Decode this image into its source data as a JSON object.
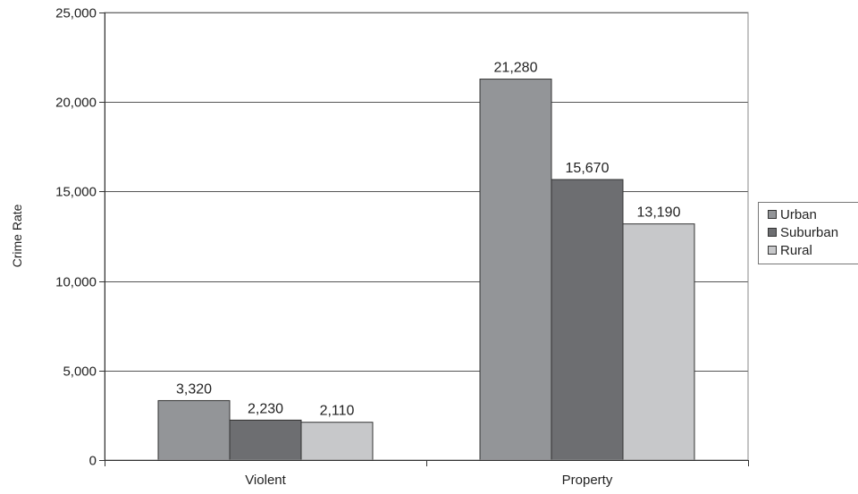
{
  "chart_data": {
    "type": "bar",
    "categories": [
      "Violent",
      "Property"
    ],
    "series": [
      {
        "name": "Urban",
        "values": [
          3320,
          21280
        ],
        "color": "#939598",
        "labels": [
          "3,320",
          "21,280"
        ]
      },
      {
        "name": "Suburban",
        "values": [
          2230,
          15670
        ],
        "color": "#6d6e71",
        "labels": [
          "2,230",
          "15,670"
        ]
      },
      {
        "name": "Rural",
        "values": [
          2110,
          13190
        ],
        "color": "#c7c8ca",
        "labels": [
          "2,110",
          "13,190"
        ]
      }
    ],
    "ylabel": "Crime Rate",
    "xlabel": "",
    "ylim": [
      0,
      25000
    ],
    "yticks": [
      0,
      5000,
      10000,
      15000,
      20000,
      25000
    ],
    "ytick_labels": [
      "0",
      "5,000",
      "10,000",
      "15,000",
      "20,000",
      "25,000"
    ],
    "grid": true,
    "legend_position": "right"
  }
}
